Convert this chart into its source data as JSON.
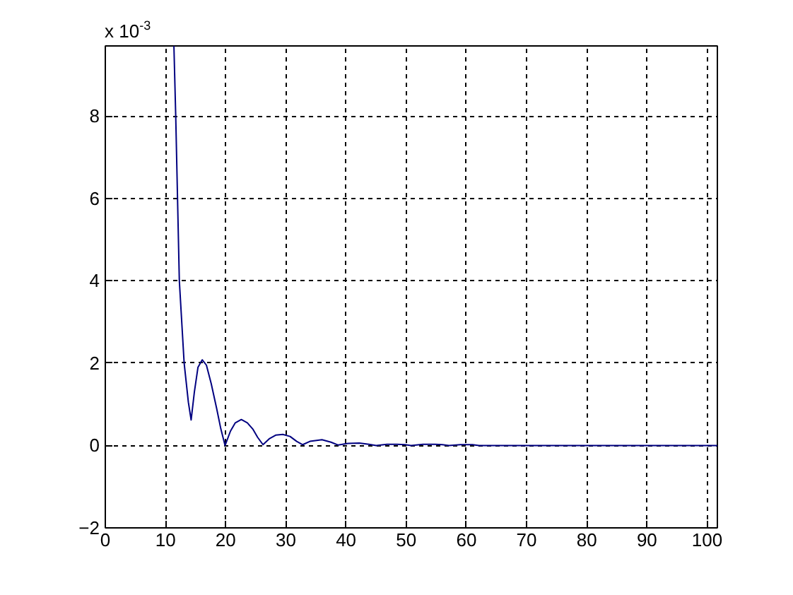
{
  "chart_data": {
    "type": "line",
    "x": [
      11.4,
      11.7,
      12.0,
      12.3,
      13.1,
      13.8,
      14.26,
      14.8,
      15.4,
      16.1,
      16.8,
      17.6,
      18.5,
      19.2,
      19.9,
      20.8,
      21.6,
      22.6,
      23.6,
      24.5,
      25.3,
      26.2,
      27.3,
      28.3,
      29.5,
      30.7,
      31.8,
      32.8,
      34.0,
      36.0,
      37.5,
      38.7,
      40.3,
      42.2,
      43.8,
      45.0,
      46.8,
      48.5,
      49.8,
      50.8,
      52.8,
      54.8,
      56.0,
      57.1,
      59.0,
      61.0,
      62.1,
      101.7
    ],
    "series": [
      {
        "color": "#000080",
        "values": [
          9.7,
          8,
          6,
          4,
          2,
          1.05,
          0.62,
          1.3,
          1.9,
          2.08,
          1.95,
          1.5,
          0.9,
          0.4,
          0,
          0.35,
          0.55,
          0.63,
          0.55,
          0.4,
          0.2,
          0.02,
          0.17,
          0.25,
          0.27,
          0.22,
          0.1,
          0.02,
          0.1,
          0.14,
          0.08,
          0.01,
          0.05,
          0.06,
          0.03,
          0,
          0.03,
          0.03,
          0.02,
          0,
          0.03,
          0.03,
          0.02,
          0,
          0.02,
          0.02,
          0,
          0
        ]
      }
    ],
    "xlim": [
      0,
      101.7
    ],
    "ylim": [
      -2,
      9.7
    ],
    "xticks": [
      0,
      10,
      20,
      30,
      40,
      50,
      60,
      70,
      80,
      90,
      100
    ],
    "yticks": [
      -2,
      0,
      2,
      4,
      6,
      8
    ],
    "grid": true,
    "line_style": "solid",
    "annotations": [
      "x 10$^{-3}$"
    ]
  }
}
